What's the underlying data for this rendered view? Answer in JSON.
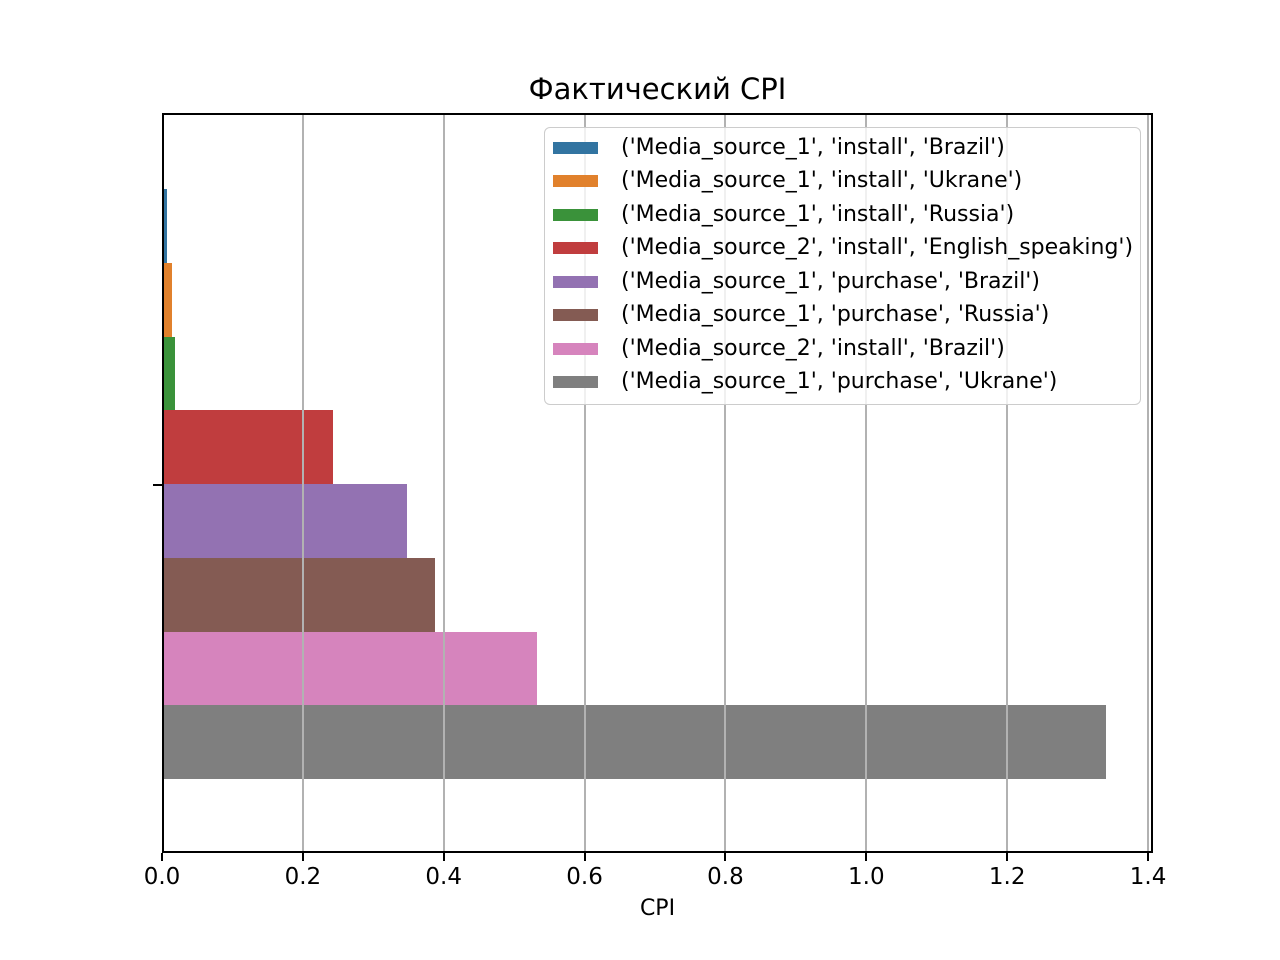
{
  "chart_data": {
    "type": "bar",
    "orientation": "horizontal",
    "title": "Фактический CPI",
    "xlabel": "CPI",
    "ylabel": "",
    "xlim": [
      0,
      1.407
    ],
    "xticks": [
      "0.0",
      "0.2",
      "0.4",
      "0.6",
      "0.8",
      "1.0",
      "1.2",
      "1.4"
    ],
    "xtick_values": [
      0.0,
      0.2,
      0.4,
      0.6,
      0.8,
      1.0,
      1.2,
      1.4
    ],
    "grid": "vertical",
    "legend_position": "upper right",
    "series": [
      {
        "name": "('Media_source_1', 'install', 'Brazil')",
        "value": 0.007,
        "color": "#3274a1"
      },
      {
        "name": "('Media_source_1', 'install', 'Ukrane')",
        "value": 0.014,
        "color": "#e1812c"
      },
      {
        "name": "('Media_source_1', 'install', 'Russia')",
        "value": 0.019,
        "color": "#3a923a"
      },
      {
        "name": "('Media_source_2', 'install', 'English_speaking')",
        "value": 0.243,
        "color": "#c03d3e"
      },
      {
        "name": "('Media_source_1', 'purchase', 'Brazil')",
        "value": 0.348,
        "color": "#9372b2"
      },
      {
        "name": "('Media_source_1', 'purchase', 'Russia')",
        "value": 0.388,
        "color": "#845b53"
      },
      {
        "name": "('Media_source_2', 'install', 'Brazil')",
        "value": 0.533,
        "color": "#d684bd"
      },
      {
        "name": "('Media_source_1', 'purchase', 'Ukrane')",
        "value": 1.34,
        "color": "#7f7f7f"
      }
    ]
  },
  "colors": {
    "spine": "#000000",
    "grid": "#b2b2b2",
    "legend_border": "#cccccc",
    "text": "#000000"
  }
}
